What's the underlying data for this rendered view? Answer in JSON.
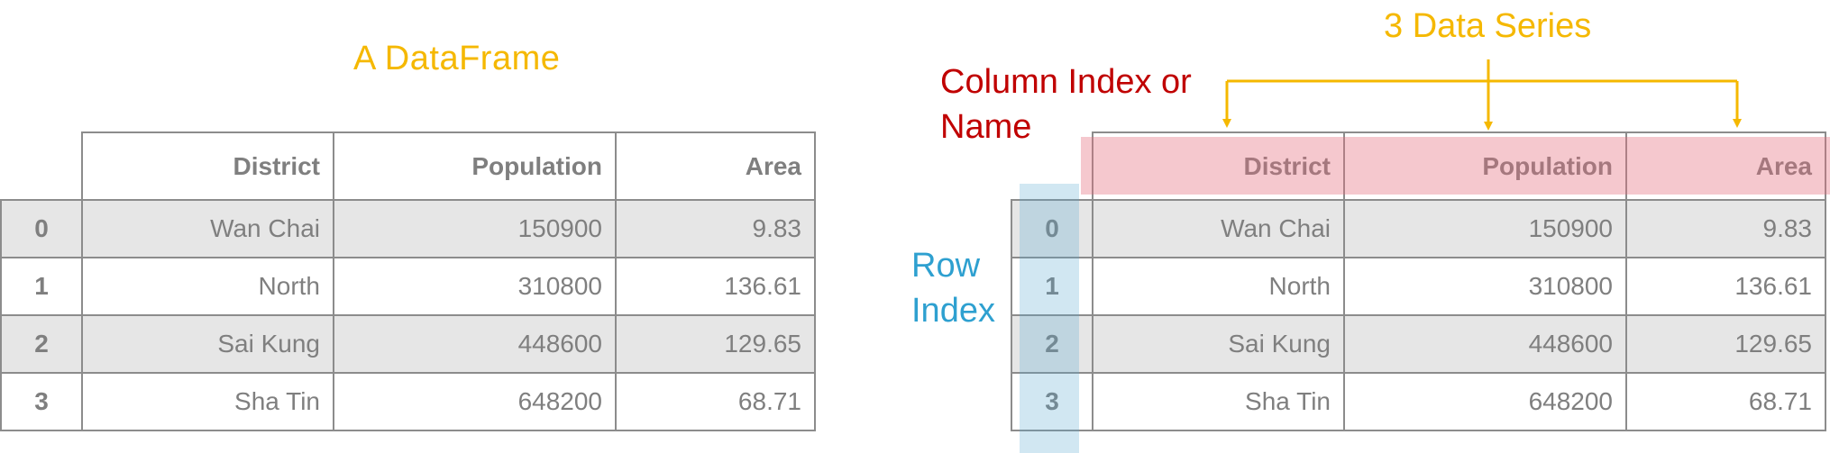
{
  "left_title": "A DataFrame",
  "series_label": "3 Data Series",
  "column_index_label": "Column Index or Name",
  "row_index_label": "Row Index",
  "colors": {
    "yellow": "#f5b800",
    "red": "#c00000",
    "blue": "#2ea0d0",
    "column_highlight": "#e46e7d",
    "row_highlight": "#5aaad2"
  },
  "table": {
    "columns": [
      "District",
      "Population",
      "Area"
    ],
    "rows": [
      {
        "index": "0",
        "district": "Wan Chai",
        "population": "150900",
        "area": "9.83"
      },
      {
        "index": "1",
        "district": "North",
        "population": "310800",
        "area": "136.61"
      },
      {
        "index": "2",
        "district": "Sai Kung",
        "population": "448600",
        "area": "129.65"
      },
      {
        "index": "3",
        "district": "Sha Tin",
        "population": "648200",
        "area": "68.71"
      }
    ]
  }
}
